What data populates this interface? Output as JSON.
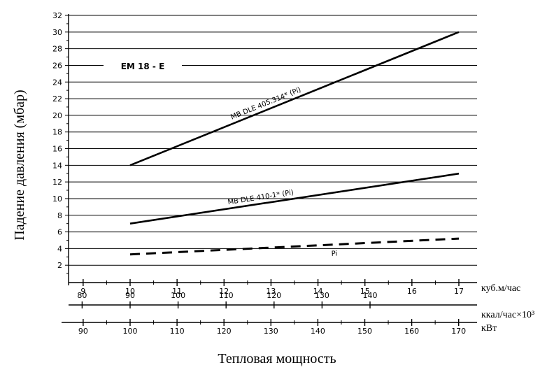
{
  "chart_data": {
    "type": "line",
    "title": "EM 18 - E",
    "ylabel": "Падение давления (мбар)",
    "xlabel": "Тепловая мощность",
    "ylim": [
      0,
      32
    ],
    "yticks": [
      2,
      4,
      6,
      8,
      10,
      12,
      14,
      16,
      18,
      20,
      22,
      24,
      26,
      28,
      30,
      32
    ],
    "x_axes": [
      {
        "unit": "куб.м/час",
        "ticks": [
          9,
          10,
          11,
          12,
          13,
          14,
          15,
          16,
          17
        ]
      },
      {
        "unit": "ккал/час×10³",
        "ticks": [
          80,
          90,
          100,
          110,
          120,
          130,
          140
        ]
      },
      {
        "unit": "кВт",
        "ticks": [
          90,
          100,
          110,
          120,
          130,
          140,
          150,
          160,
          170
        ]
      }
    ],
    "x_unit": "куб.м/час",
    "series": [
      {
        "name": "MB DLE 405.314* (Pi)",
        "style": "solid",
        "x": [
          10,
          17
        ],
        "y": [
          14,
          30
        ]
      },
      {
        "name": "MB DLE 410-1* (Pi)",
        "style": "solid",
        "x": [
          10,
          17
        ],
        "y": [
          7,
          13
        ]
      },
      {
        "name": "Pi",
        "style": "dashed",
        "x": [
          10,
          17
        ],
        "y": [
          3.3,
          5.2
        ]
      }
    ],
    "grid": {
      "horizontal": true,
      "vertical": false
    }
  }
}
